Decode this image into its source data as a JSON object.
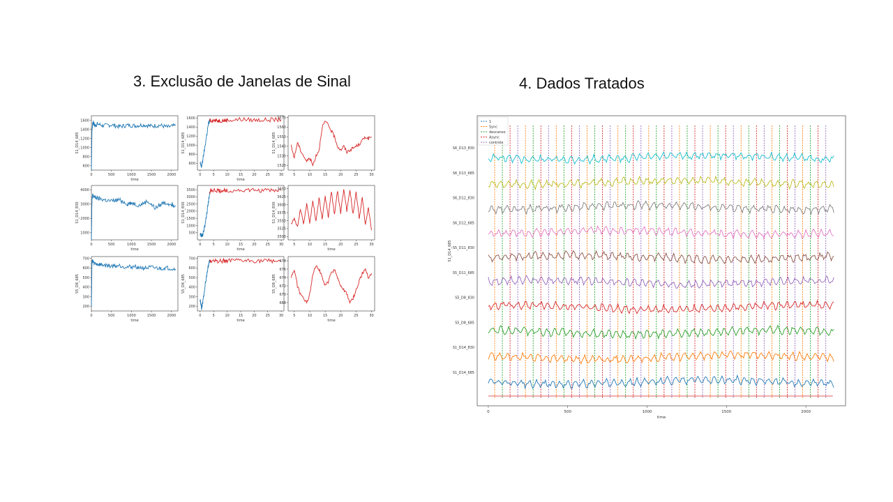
{
  "slide": {
    "left_title": "3. Exclusão de Janelas de Sinal",
    "right_title": "4. Dados Tratados"
  },
  "chart_data": [
    {
      "type": "line",
      "panel": "r1c1",
      "color": "#1f77b4",
      "xlabel": "time",
      "ylabel": "S1_D14_685",
      "xlim": [
        0,
        2160
      ],
      "ylim": [
        500,
        1700
      ],
      "xticks": [
        0,
        500,
        1000,
        1500,
        2000
      ],
      "yticks": [
        600,
        800,
        1000,
        1200,
        1400,
        1600
      ],
      "x": [
        0,
        15,
        30,
        50,
        80,
        150,
        300,
        500,
        700,
        900,
        1100,
        1300,
        1500,
        1700,
        1900,
        2100
      ],
      "y": [
        500,
        1400,
        1500,
        1560,
        1480,
        1520,
        1480,
        1500,
        1460,
        1490,
        1480,
        1500,
        1470,
        1490,
        1450,
        1480
      ]
    },
    {
      "type": "line",
      "panel": "r1c2",
      "color": "#1f77b4",
      "color2": "#d62728",
      "xlabel": "time",
      "ylabel": "S1_D14_685",
      "xlim": [
        -1,
        31
      ],
      "ylim": [
        450,
        1650
      ],
      "xticks": [
        0,
        5,
        10,
        15,
        20,
        25,
        30
      ],
      "yticks": [
        600,
        800,
        1000,
        1200,
        1400,
        1600
      ],
      "x": [
        0,
        0.5,
        1,
        2,
        3,
        3.5,
        4,
        6,
        8,
        10,
        15,
        20,
        25,
        30
      ],
      "y": [
        600,
        520,
        680,
        1050,
        1450,
        1540,
        1550,
        1540,
        1545,
        1550,
        1570,
        1555,
        1560,
        1565
      ],
      "split_at": 3.5
    },
    {
      "type": "line",
      "panel": "r1c3",
      "color": "#d62728",
      "xlabel": "",
      "ylabel": "S1_D14_685",
      "xlim": [
        3,
        31
      ],
      "ylim": [
        1515,
        1572
      ],
      "xticks": [
        5,
        10,
        15,
        20,
        25,
        30
      ],
      "yticks": [
        1520,
        1530,
        1540,
        1550,
        1560,
        1570
      ],
      "x": [
        4,
        5,
        6,
        7,
        8,
        9,
        10,
        11,
        12,
        13,
        14,
        15,
        16,
        17,
        18,
        19,
        20,
        21,
        22,
        23,
        24,
        25,
        26,
        27,
        28,
        29,
        30
      ],
      "y": [
        1540,
        1528,
        1544,
        1536,
        1530,
        1524,
        1528,
        1520,
        1530,
        1536,
        1560,
        1566,
        1562,
        1556,
        1550,
        1540,
        1536,
        1540,
        1534,
        1536,
        1538,
        1540,
        1542,
        1546,
        1550,
        1548,
        1550
      ]
    },
    {
      "type": "line",
      "panel": "r2c1",
      "color": "#1f77b4",
      "xlabel": "time",
      "ylabel": "S1_D14_830",
      "xlim": [
        0,
        2160
      ],
      "ylim": [
        500,
        4300
      ],
      "xticks": [
        0,
        500,
        1000,
        1500,
        2000
      ],
      "yticks": [
        1000,
        2000,
        3000,
        4000
      ],
      "x": [
        0,
        15,
        30,
        60,
        150,
        300,
        500,
        700,
        900,
        1000,
        1200,
        1400,
        1600,
        1800,
        2000,
        2100
      ],
      "y": [
        500,
        3300,
        3600,
        3500,
        3400,
        3300,
        3200,
        3300,
        3000,
        3100,
        2900,
        3200,
        2700,
        3100,
        3000,
        2900
      ]
    },
    {
      "type": "line",
      "panel": "r2c2",
      "color": "#1f77b4",
      "color2": "#d62728",
      "xlabel": "time",
      "ylabel": "S1_D14_830",
      "xlim": [
        -1,
        31
      ],
      "ylim": [
        0,
        3800
      ],
      "xticks": [
        0,
        5,
        10,
        15,
        20,
        25,
        30
      ],
      "yticks": [
        500,
        1000,
        1500,
        2000,
        2500,
        3000,
        3500
      ],
      "x": [
        0,
        0.5,
        1,
        2,
        3,
        3.5,
        4,
        6,
        8,
        10,
        15,
        20,
        25,
        30
      ],
      "y": [
        400,
        250,
        400,
        1200,
        2600,
        3300,
        3450,
        3420,
        3440,
        3450,
        3460,
        3450,
        3460,
        3440
      ],
      "split_at": 3.5
    },
    {
      "type": "line",
      "panel": "r2c3",
      "color": "#d62728",
      "xlabel": "time",
      "ylabel": "S1_D14_830",
      "xlim": [
        3,
        31
      ],
      "ylim": [
        3490,
        3660
      ],
      "xticks": [
        5,
        10,
        15,
        20,
        25,
        30
      ],
      "yticks": [
        3500,
        3525,
        3550,
        3575,
        3600,
        3625,
        3650
      ],
      "x": [
        4,
        5,
        6,
        7,
        8,
        9,
        10,
        11,
        12,
        13,
        14,
        15,
        16,
        17,
        18,
        19,
        20,
        21,
        22,
        23,
        24,
        25,
        26,
        27,
        28,
        29,
        30
      ],
      "y": [
        3540,
        3560,
        3530,
        3585,
        3540,
        3600,
        3545,
        3610,
        3550,
        3620,
        3555,
        3630,
        3560,
        3640,
        3570,
        3645,
        3575,
        3650,
        3580,
        3648,
        3570,
        3640,
        3560,
        3620,
        3540,
        3590,
        3520
      ]
    },
    {
      "type": "line",
      "panel": "r3c1",
      "color": "#1f77b4",
      "xlabel": "time",
      "ylabel": "S5_D8_685",
      "xlim": [
        0,
        2160
      ],
      "ylim": [
        150,
        720
      ],
      "xticks": [
        0,
        500,
        1000,
        1500,
        2000
      ],
      "yticks": [
        200,
        300,
        400,
        500,
        600,
        700
      ],
      "x": [
        0,
        15,
        30,
        60,
        150,
        300,
        500,
        700,
        900,
        1100,
        1300,
        1500,
        1700,
        1900,
        2100
      ],
      "y": [
        180,
        660,
        680,
        650,
        640,
        630,
        620,
        625,
        610,
        615,
        600,
        605,
        595,
        600,
        590
      ]
    },
    {
      "type": "line",
      "panel": "r3c2",
      "color": "#1f77b4",
      "color2": "#d62728",
      "xlabel": "time",
      "ylabel": "S5_D8_685",
      "xlim": [
        -1,
        31
      ],
      "ylim": [
        150,
        720
      ],
      "xticks": [
        0,
        5,
        10,
        15,
        20,
        25,
        30
      ],
      "yticks": [
        200,
        300,
        400,
        500,
        600,
        700
      ],
      "x": [
        0,
        0.5,
        1,
        2,
        3,
        3.5,
        4,
        6,
        8,
        10,
        15,
        20,
        25,
        30
      ],
      "y": [
        260,
        180,
        240,
        450,
        620,
        672,
        676,
        673,
        675,
        674,
        676,
        675,
        674,
        676
      ],
      "split_at": 3.5
    },
    {
      "type": "line",
      "panel": "r3c3",
      "color": "#d62728",
      "xlabel": "time",
      "ylabel": "S5_D8_685",
      "xlim": [
        3,
        31
      ],
      "ylim": [
        666,
        679
      ],
      "xticks": [
        5,
        10,
        15,
        20,
        25,
        30
      ],
      "yticks": [
        668,
        670,
        672,
        674,
        676,
        678
      ],
      "x": [
        4,
        5,
        6,
        7,
        8,
        9,
        10,
        11,
        12,
        13,
        14,
        15,
        16,
        17,
        18,
        19,
        20,
        21,
        22,
        23,
        24,
        25,
        26,
        27,
        28,
        29,
        30
      ],
      "y": [
        674,
        676,
        672,
        670,
        669,
        668,
        670,
        675,
        677,
        676,
        674,
        672,
        673,
        675,
        676,
        674,
        672,
        671,
        670,
        668,
        669,
        671,
        673,
        675,
        676,
        674,
        675
      ]
    },
    {
      "type": "line",
      "panel": "big",
      "xlabel": "time",
      "ylabel": "S1_D14_685",
      "xlim": [
        -70,
        2250
      ],
      "xticks": [
        0,
        500,
        1000,
        1500,
        2000
      ],
      "legend": {
        "placement": "top-left",
        "entries": [
          {
            "name": "1",
            "color": "#1f77b4"
          },
          {
            "name": "Sync",
            "color": "#ff7f0e"
          },
          {
            "name": "descanso",
            "color": "#2ca02c"
          },
          {
            "name": "Async",
            "color": "#d62728"
          },
          {
            "name": "controle",
            "color": "#9467bd"
          }
        ]
      },
      "series": [
        {
          "name": "S6_D13_830",
          "color": "#17becf"
        },
        {
          "name": "S6_D13_685",
          "color": "#bcbd22"
        },
        {
          "name": "S6_D12_830",
          "color": "#7f7f7f"
        },
        {
          "name": "S6_D12_685",
          "color": "#e377c2"
        },
        {
          "name": "S5_D11_830",
          "color": "#8c564b"
        },
        {
          "name": "S5_D11_685",
          "color": "#9467bd"
        },
        {
          "name": "S5_D8_830",
          "color": "#d62728"
        },
        {
          "name": "S5_D8_685",
          "color": "#2ca02c"
        },
        {
          "name": "S1_D14_830",
          "color": "#ff7f0e"
        },
        {
          "name": "S1_D14_685",
          "color": "#1f77b4"
        }
      ]
    }
  ]
}
